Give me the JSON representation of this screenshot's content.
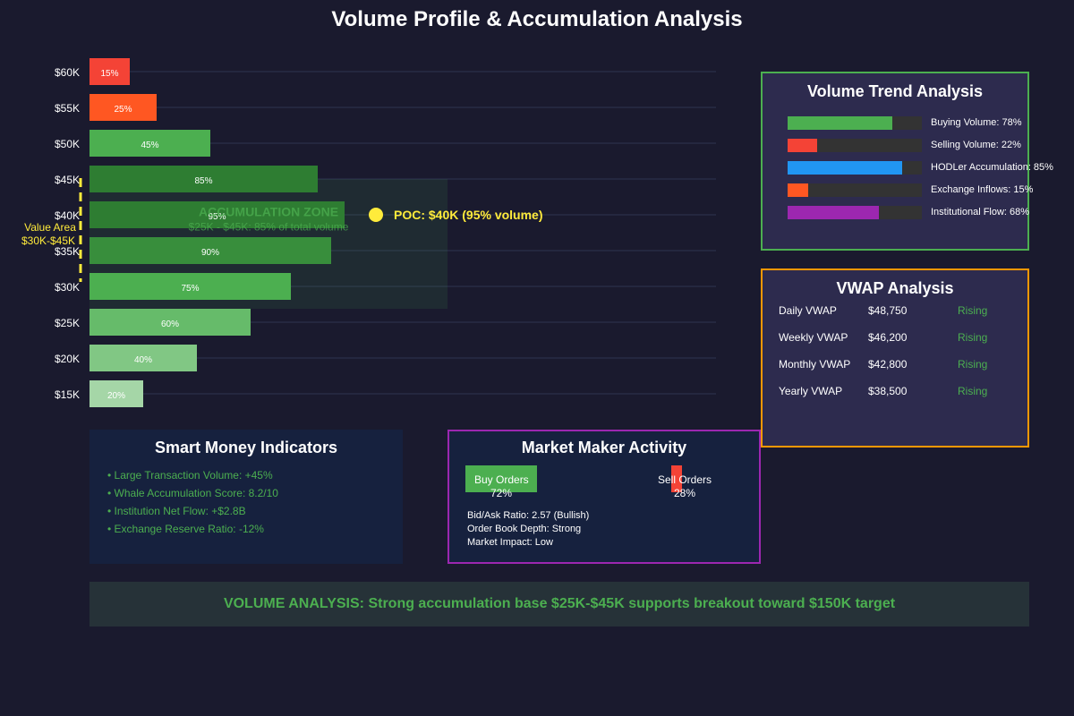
{
  "title": "Volume Profile & Accumulation Analysis",
  "chart_data": {
    "type": "bar",
    "orientation": "horizontal",
    "categories": [
      "$60K",
      "$55K",
      "$50K",
      "$45K",
      "$40K",
      "$35K",
      "$30K",
      "$25K",
      "$20K",
      "$15K"
    ],
    "values": [
      15,
      25,
      45,
      85,
      95,
      90,
      75,
      60,
      40,
      20
    ],
    "value_labels": [
      "15%",
      "25%",
      "45%",
      "85%",
      "95%",
      "90%",
      "75%",
      "60%",
      "40%",
      "20%"
    ],
    "bar_colors": [
      "#f44336",
      "#ff5722",
      "#4caf50",
      "#2e7d32",
      "#2e7d32",
      "#388e3c",
      "#4caf50",
      "#66bb6a",
      "#81c784",
      "#a5d6a7"
    ],
    "xlim": [
      0,
      100
    ],
    "grid": true,
    "zone": {
      "title": "ACCUMULATION ZONE",
      "subtitle": "$25K - $45K: 85% of total volume",
      "from": "$45K",
      "to": "$25K"
    },
    "poc": {
      "label": "POC: $40K (95% volume)",
      "category": "$40K"
    },
    "value_area": {
      "line1": "Value Area",
      "line2": "$30K-$45K",
      "from": "$45K",
      "to": "$30K"
    }
  },
  "trend": {
    "title": "Volume Trend Analysis",
    "items": [
      {
        "label": "Buying Volume: 78%",
        "value": 78,
        "color": "#4caf50"
      },
      {
        "label": "Selling Volume: 22%",
        "value": 22,
        "color": "#f44336"
      },
      {
        "label": "HODLer Accumulation: 85%",
        "value": 85,
        "color": "#2196f3"
      },
      {
        "label": "Exchange Inflows: 15%",
        "value": 15,
        "color": "#ff5722"
      },
      {
        "label": "Institutional Flow: 68%",
        "value": 68,
        "color": "#9c27b0"
      }
    ]
  },
  "vwap": {
    "title": "VWAP Analysis",
    "rows": [
      {
        "name": "Daily VWAP",
        "value": "$48,750",
        "trend": "Rising"
      },
      {
        "name": "Weekly VWAP",
        "value": "$46,200",
        "trend": "Rising"
      },
      {
        "name": "Monthly VWAP",
        "value": "$42,800",
        "trend": "Rising"
      },
      {
        "name": "Yearly VWAP",
        "value": "$38,500",
        "trend": "Rising"
      }
    ]
  },
  "smart": {
    "title": "Smart Money Indicators",
    "items": [
      "• Large Transaction Volume: +45%",
      "• Whale Accumulation Score: 8.2/10",
      "• Institution Net Flow: +$2.8B",
      "• Exchange Reserve Ratio: -12%"
    ]
  },
  "market_maker": {
    "title": "Market Maker Activity",
    "buy_label": "Buy Orders",
    "buy_pct": "72%",
    "buy_value": 72,
    "sell_label": "Sell Orders",
    "sell_pct": "28%",
    "sell_value": 28,
    "stats": [
      "Bid/Ask Ratio: 2.57 (Bullish)",
      "Order Book Depth: Strong",
      "Market Impact: Low"
    ]
  },
  "summary": "VOLUME ANALYSIS: Strong accumulation base $25K-$45K supports breakout toward $150K target"
}
